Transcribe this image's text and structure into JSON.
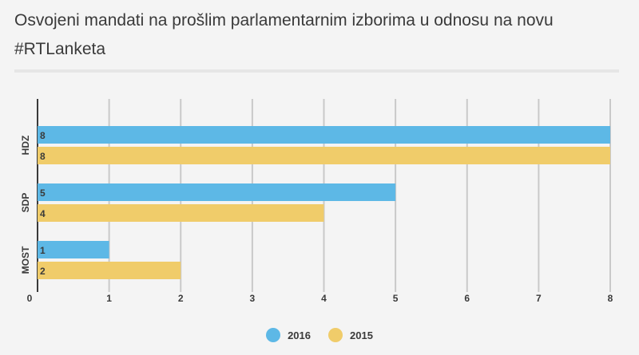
{
  "chart_data": {
    "type": "bar",
    "orientation": "horizontal",
    "title": "Osvojeni mandati na prošlim parlamentarnim izborima u odnosu na novu #RTLanketa",
    "categories": [
      "HDZ",
      "SDP",
      "MOST"
    ],
    "series": [
      {
        "name": "2016",
        "color": "#5db8e6",
        "values": [
          8,
          5,
          1
        ]
      },
      {
        "name": "2015",
        "color": "#f0cc6a",
        "values": [
          8,
          4,
          2
        ]
      }
    ],
    "xlim": [
      0,
      8
    ],
    "xticks": [
      "0",
      "1",
      "2",
      "3",
      "4",
      "5",
      "6",
      "7",
      "8"
    ],
    "grid": true,
    "legend_position": "bottom-center",
    "data_labels": true
  }
}
